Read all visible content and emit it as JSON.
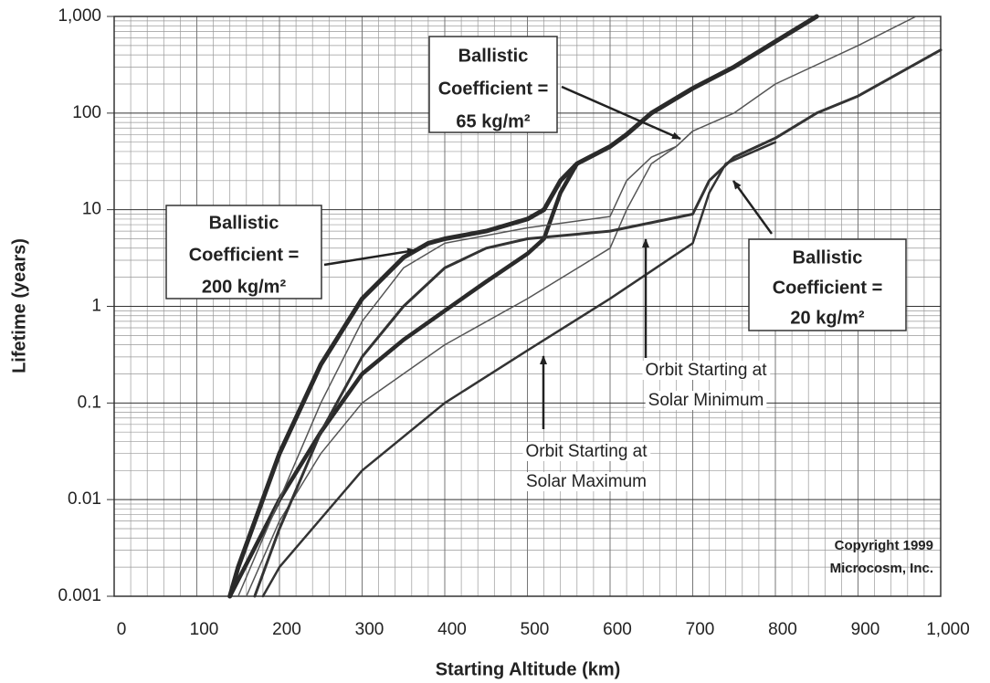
{
  "chart_data": {
    "type": "line",
    "x_label": "Starting Altitude (km)",
    "y_label": "Lifetime (years)",
    "xlim": [
      0,
      1000
    ],
    "xticks": [
      0,
      100,
      200,
      300,
      400,
      500,
      600,
      700,
      800,
      900,
      {
        "value": 1000,
        "label": "1,000"
      }
    ],
    "ylim": [
      0.001,
      1000
    ],
    "yticks": [
      0.001,
      0.01,
      0.1,
      1,
      10,
      100,
      {
        "value": 1000,
        "label": "1,000"
      }
    ],
    "log_y": true,
    "grid": true,
    "series": [
      {
        "color": "#2a2a2a",
        "width": 5,
        "x": [
          140,
          150,
          200,
          250,
          300,
          350,
          380,
          400,
          450,
          500,
          520,
          540,
          560,
          600,
          620,
          650,
          700,
          750,
          800,
          850
        ],
        "values": [
          0.001,
          0.002,
          0.03,
          0.25,
          1.2,
          3.2,
          4.5,
          5,
          6,
          8,
          10,
          20,
          30,
          45,
          60,
          100,
          180,
          300,
          550,
          1000
        ]
      },
      {
        "color": "#2a2a2a",
        "width": 4.5,
        "x": [
          140,
          200,
          250,
          300,
          350,
          400,
          450,
          500,
          520,
          540,
          560
        ],
        "values": [
          0.001,
          0.01,
          0.05,
          0.2,
          0.45,
          0.9,
          1.8,
          3.5,
          5,
          15,
          30
        ]
      },
      {
        "color": "#555555",
        "width": 1.5,
        "x": [
          150,
          200,
          250,
          300,
          350,
          400,
          500,
          600,
          620,
          650,
          680,
          700,
          750,
          800,
          900,
          970
        ],
        "values": [
          0.001,
          0.01,
          0.1,
          0.7,
          2.5,
          4.5,
          6.5,
          8.5,
          20,
          35,
          45,
          65,
          100,
          200,
          500,
          1000
        ]
      },
      {
        "color": "#555555",
        "width": 1.5,
        "x": [
          160,
          200,
          250,
          300,
          400,
          500,
          600,
          620,
          650,
          680,
          700
        ],
        "values": [
          0.001,
          0.006,
          0.03,
          0.1,
          0.4,
          1.2,
          4,
          10,
          30,
          45,
          65
        ]
      },
      {
        "color": "#333333",
        "width": 3,
        "x": [
          170,
          200,
          250,
          300,
          350,
          400,
          450,
          500,
          600,
          700,
          720,
          750,
          800,
          850,
          900,
          1000
        ],
        "values": [
          0.001,
          0.005,
          0.05,
          0.3,
          1,
          2.5,
          4,
          5,
          6,
          9,
          20,
          35,
          55,
          100,
          150,
          450
        ]
      },
      {
        "color": "#333333",
        "width": 2.5,
        "x": [
          180,
          200,
          300,
          400,
          500,
          600,
          700,
          720,
          740,
          800
        ],
        "values": [
          0.001,
          0.002,
          0.02,
          0.1,
          0.35,
          1.2,
          4.5,
          15,
          30,
          50
        ]
      }
    ],
    "annotations": [
      {
        "lines": [
          "Ballistic",
          "Coefficient =",
          "65 kg/m²"
        ]
      },
      {
        "lines": [
          "Ballistic",
          "Coefficient =",
          "200 kg/m²"
        ]
      },
      {
        "lines": [
          "Ballistic",
          "Coefficient =",
          "20 kg/m²"
        ]
      },
      {
        "lines": [
          "Orbit Starting at",
          "Solar Minimum"
        ]
      },
      {
        "lines": [
          "Orbit Starting at",
          "Solar Maximum"
        ]
      },
      {
        "lines": [
          "Copyright 1999",
          "Microcosm, Inc."
        ]
      }
    ]
  }
}
